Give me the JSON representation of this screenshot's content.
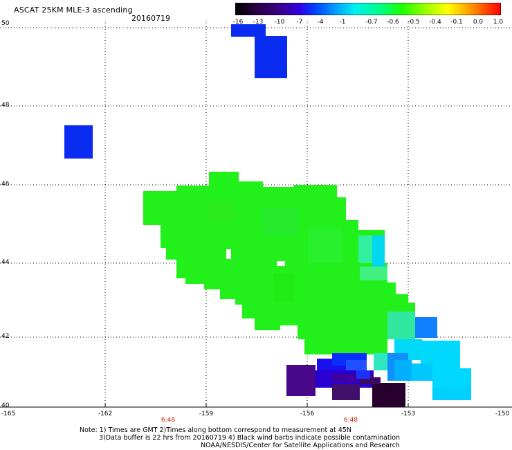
{
  "header": {
    "title": "ASCAT 25KM MLE-3 ascending",
    "date": "20160719"
  },
  "colorbar": {
    "labels": [
      "-16",
      "-13",
      "-10",
      "-7",
      "-4",
      "-1",
      "-0.7",
      "-0.6",
      "-0.5",
      "-0.4",
      "-0.1",
      "0.0",
      "1.0"
    ],
    "colors": [
      "#1a0018",
      "#2a0044",
      "#400080",
      "#2800ff",
      "#0060ff",
      "#00b8ff",
      "#00f0f0",
      "#00ff90",
      "#20ff00",
      "#80ff00",
      "#ffff00",
      "#ffa000",
      "#ff3000",
      "#ff0000"
    ]
  },
  "axes": {
    "lat_labels": [
      "50",
      "48",
      "46",
      "44",
      "42",
      "40"
    ],
    "lon_labels": [
      "-165",
      "-162",
      "-159",
      "-156",
      "-153",
      "-150"
    ],
    "time_labels": [
      "6:48",
      "6:48"
    ]
  },
  "notes": {
    "line1": "Note: 1) Times are GMT 2)Times along bottom correspond to measurement at 45N",
    "line2": "3)Data buffer is 22 hrs from 20160719 4) Black wind barbs indicate possible contamination",
    "line3": "NOAA/NESDIS/Center for Satellite Applications and Research"
  }
}
